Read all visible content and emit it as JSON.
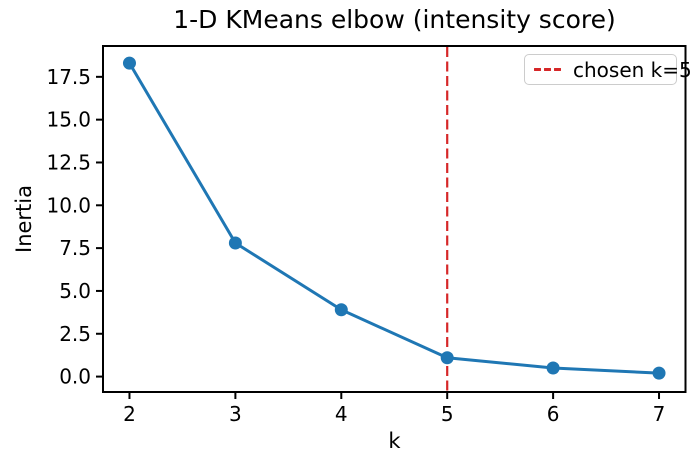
{
  "chart_data": {
    "type": "line",
    "title": "1-D KMeans elbow (intensity score)",
    "xlabel": "k",
    "ylabel": "Inertia",
    "x": [
      2,
      3,
      4,
      5,
      6,
      7
    ],
    "series": [
      {
        "name": "inertia",
        "values": [
          18.3,
          7.8,
          3.9,
          1.1,
          0.5,
          0.2
        ]
      }
    ],
    "xticks": [
      "2",
      "3",
      "4",
      "5",
      "6",
      "7"
    ],
    "xtick_values": [
      2,
      3,
      4,
      5,
      6,
      7
    ],
    "yticks": [
      "0.0",
      "2.5",
      "5.0",
      "7.5",
      "10.0",
      "12.5",
      "15.0",
      "17.5"
    ],
    "ytick_values": [
      0,
      2.5,
      5,
      7.5,
      10,
      12.5,
      15,
      17.5
    ],
    "xlim": [
      1.75,
      7.25
    ],
    "ylim": [
      -0.9,
      19.3
    ],
    "grid": false,
    "marker": "circle",
    "annotations": [
      {
        "type": "vline",
        "x": 5,
        "linestyle": "dashed",
        "color": "#d62728"
      }
    ],
    "legend": {
      "position": "upper right",
      "entries": [
        {
          "label": "chosen k=5",
          "color": "#d62728",
          "linestyle": "dashed"
        }
      ]
    },
    "colors": {
      "line": "#1f77b4",
      "marker": "#1f77b4",
      "vline": "#d62728",
      "spine": "#000000",
      "text": "#000000",
      "legend_border": "#cccccc",
      "background": "#ffffff"
    }
  }
}
